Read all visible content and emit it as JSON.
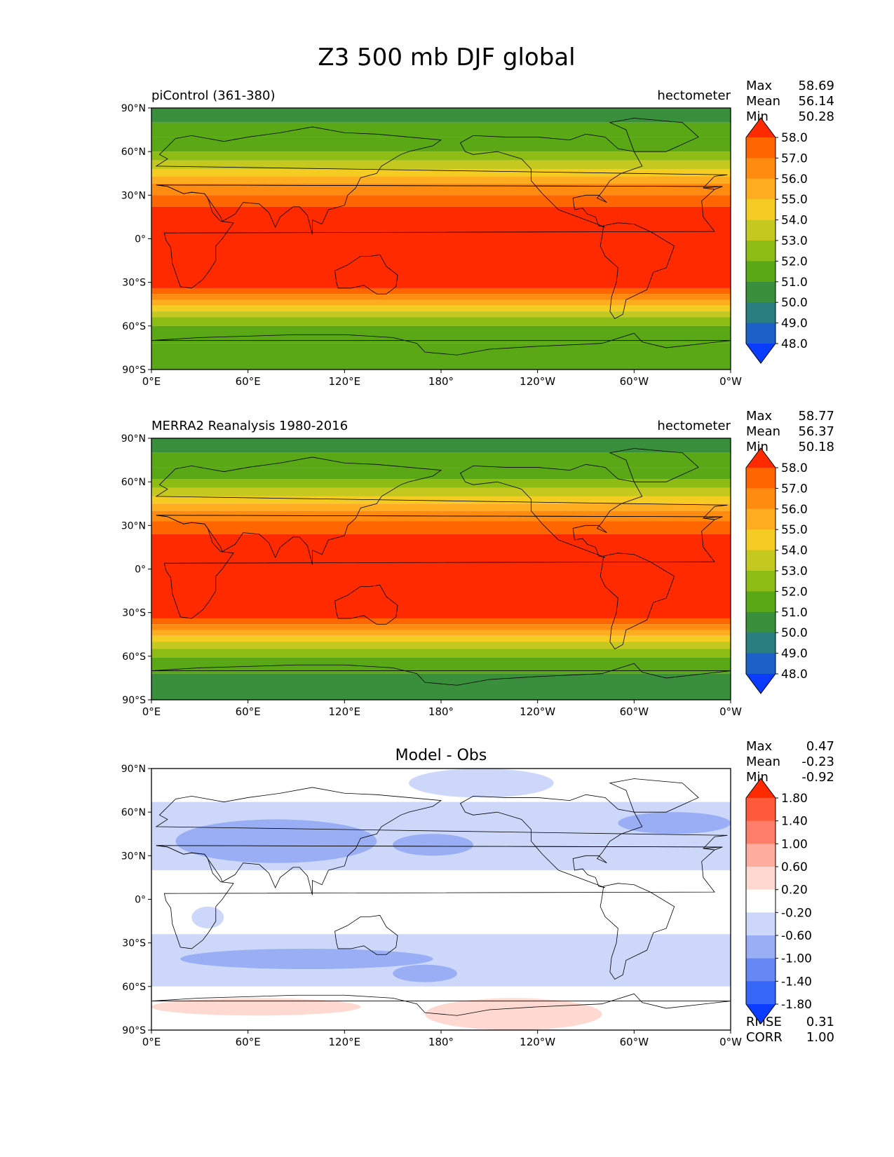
{
  "figure_title": "Z3 500 mb DJF global",
  "lat_ticks": [
    "90°N",
    "60°N",
    "30°N",
    "0°",
    "30°S",
    "60°S",
    "90°S"
  ],
  "lon_ticks": [
    "0°E",
    "60°E",
    "120°E",
    "180°",
    "120°W",
    "60°W",
    "0°W"
  ],
  "chart_data": [
    {
      "type": "heatmap",
      "label_left": "piControl (361-380)",
      "label_right": "hectometer",
      "stats": [
        {
          "label": "Max",
          "value": "58.69"
        },
        {
          "label": "Mean",
          "value": "56.14"
        },
        {
          "label": "Min",
          "value": "50.28"
        }
      ],
      "lat_bands": [
        {
          "lat": [
            80,
            90
          ],
          "value": 50.5
        },
        {
          "lat": [
            70,
            80
          ],
          "value": 51.0
        },
        {
          "lat": [
            60,
            70
          ],
          "value": 51.7
        },
        {
          "lat": [
            54,
            60
          ],
          "value": 52.5
        },
        {
          "lat": [
            48,
            54
          ],
          "value": 53.5
        },
        {
          "lat": [
            43,
            48
          ],
          "value": 54.5
        },
        {
          "lat": [
            38,
            43
          ],
          "value": 55.5
        },
        {
          "lat": [
            30,
            38
          ],
          "value": 56.5
        },
        {
          "lat": [
            22,
            30
          ],
          "value": 57.5
        },
        {
          "lat": [
            -34,
            22
          ],
          "value": 58.3
        },
        {
          "lat": [
            -38,
            -34
          ],
          "value": 57.5
        },
        {
          "lat": [
            -42,
            -38
          ],
          "value": 56.5
        },
        {
          "lat": [
            -46,
            -42
          ],
          "value": 55.5
        },
        {
          "lat": [
            -50,
            -46
          ],
          "value": 54.5
        },
        {
          "lat": [
            -54,
            -50
          ],
          "value": 53.5
        },
        {
          "lat": [
            -60,
            -54
          ],
          "value": 52.5
        },
        {
          "lat": [
            -72,
            -60
          ],
          "value": 51.5
        },
        {
          "lat": [
            -90,
            -72
          ],
          "value": 51.3
        }
      ],
      "colorbar": {
        "levels": [
          "58.0",
          "57.0",
          "56.0",
          "55.0",
          "54.0",
          "53.0",
          "52.0",
          "51.0",
          "50.0",
          "49.0",
          "48.0"
        ],
        "colors": [
          "#ff2a00",
          "#ff6600",
          "#ff8c10",
          "#ffad20",
          "#f5cc22",
          "#c5c81e",
          "#8dbd14",
          "#5aa816",
          "#3a8f3c",
          "#2a7e80",
          "#1d60c8",
          "#0a3cff"
        ]
      }
    },
    {
      "type": "heatmap",
      "label_left": "MERRA2 Reanalysis 1980-2016",
      "label_right": "hectometer",
      "stats": [
        {
          "label": "Max",
          "value": "58.77"
        },
        {
          "label": "Mean",
          "value": "56.37"
        },
        {
          "label": "Min",
          "value": "50.18"
        }
      ],
      "lat_bands": [
        {
          "lat": [
            80,
            90
          ],
          "value": 50.5
        },
        {
          "lat": [
            70,
            80
          ],
          "value": 51.0
        },
        {
          "lat": [
            62,
            70
          ],
          "value": 51.7
        },
        {
          "lat": [
            56,
            62
          ],
          "value": 52.5
        },
        {
          "lat": [
            50,
            56
          ],
          "value": 53.5
        },
        {
          "lat": [
            45,
            50
          ],
          "value": 54.5
        },
        {
          "lat": [
            40,
            45
          ],
          "value": 55.5
        },
        {
          "lat": [
            33,
            40
          ],
          "value": 56.5
        },
        {
          "lat": [
            24,
            33
          ],
          "value": 57.5
        },
        {
          "lat": [
            -34,
            24
          ],
          "value": 58.3
        },
        {
          "lat": [
            -38,
            -34
          ],
          "value": 57.5
        },
        {
          "lat": [
            -42,
            -38
          ],
          "value": 56.5
        },
        {
          "lat": [
            -46,
            -42
          ],
          "value": 55.5
        },
        {
          "lat": [
            -50,
            -46
          ],
          "value": 54.5
        },
        {
          "lat": [
            -55,
            -50
          ],
          "value": 53.5
        },
        {
          "lat": [
            -61,
            -55
          ],
          "value": 52.5
        },
        {
          "lat": [
            -72,
            -61
          ],
          "value": 51.5
        },
        {
          "lat": [
            -90,
            -72
          ],
          "value": 50.6
        }
      ],
      "colorbar": {
        "levels": [
          "58.0",
          "57.0",
          "56.0",
          "55.0",
          "54.0",
          "53.0",
          "52.0",
          "51.0",
          "50.0",
          "49.0",
          "48.0"
        ],
        "colors": [
          "#ff2a00",
          "#ff6600",
          "#ff8c10",
          "#ffad20",
          "#f5cc22",
          "#c5c81e",
          "#8dbd14",
          "#5aa816",
          "#3a8f3c",
          "#2a7e80",
          "#1d60c8",
          "#0a3cff"
        ]
      }
    },
    {
      "type": "heatmap",
      "title": "Model - Obs",
      "stats": [
        {
          "label": "Max",
          "value": "0.47"
        },
        {
          "label": "Mean",
          "value": "-0.23"
        },
        {
          "label": "Min",
          "value": "-0.92"
        }
      ],
      "metrics": [
        {
          "label": "RMSE",
          "value": "0.31"
        },
        {
          "label": "CORR",
          "value": "1.00"
        }
      ],
      "lat_bands": [
        {
          "lat": [
            67,
            90
          ],
          "value": 0.0
        },
        {
          "lat": [
            20,
            67
          ],
          "value": -0.4
        },
        {
          "lat": [
            -24,
            20
          ],
          "value": 0.0
        },
        {
          "lat": [
            -60,
            -24
          ],
          "value": -0.4
        },
        {
          "lat": [
            -72,
            -60
          ],
          "value": 0.0
        },
        {
          "lat": [
            -90,
            -72
          ],
          "value": 0.0
        }
      ],
      "anomalies": [
        {
          "lat": [
            25,
            55
          ],
          "lon": [
            15,
            140
          ],
          "value": -0.8
        },
        {
          "lat": [
            30,
            45
          ],
          "lon": [
            150,
            200
          ],
          "value": -0.8
        },
        {
          "lat": [
            45,
            60
          ],
          "lon": [
            290,
            360
          ],
          "value": -0.8
        },
        {
          "lat": [
            -48,
            -34
          ],
          "lon": [
            18,
            175
          ],
          "value": -0.8
        },
        {
          "lat": [
            -57,
            -45
          ],
          "lon": [
            150,
            190
          ],
          "value": -0.8
        },
        {
          "lat": [
            -80,
            -68
          ],
          "lon": [
            0,
            130
          ],
          "value": 0.4
        },
        {
          "lat": [
            -90,
            -68
          ],
          "lon": [
            170,
            280
          ],
          "value": 0.4
        },
        {
          "lat": [
            70,
            90
          ],
          "lon": [
            160,
            250
          ],
          "value": -0.4
        },
        {
          "lat": [
            -20,
            -5
          ],
          "lon": [
            25,
            45
          ],
          "value": -0.4
        }
      ],
      "colorbar": {
        "levels": [
          "1.80",
          "1.40",
          "1.00",
          "0.60",
          "0.20",
          "-0.20",
          "-0.60",
          "-1.00",
          "-1.40",
          "-1.80"
        ],
        "colors": [
          "#ff2a00",
          "#ff5a3c",
          "#fe7e6a",
          "#fdac9e",
          "#fdd9d2",
          "#ffffff",
          "#ccd7fa",
          "#9aaef6",
          "#6688f5",
          "#3566f8",
          "#0a3cff"
        ]
      }
    }
  ]
}
